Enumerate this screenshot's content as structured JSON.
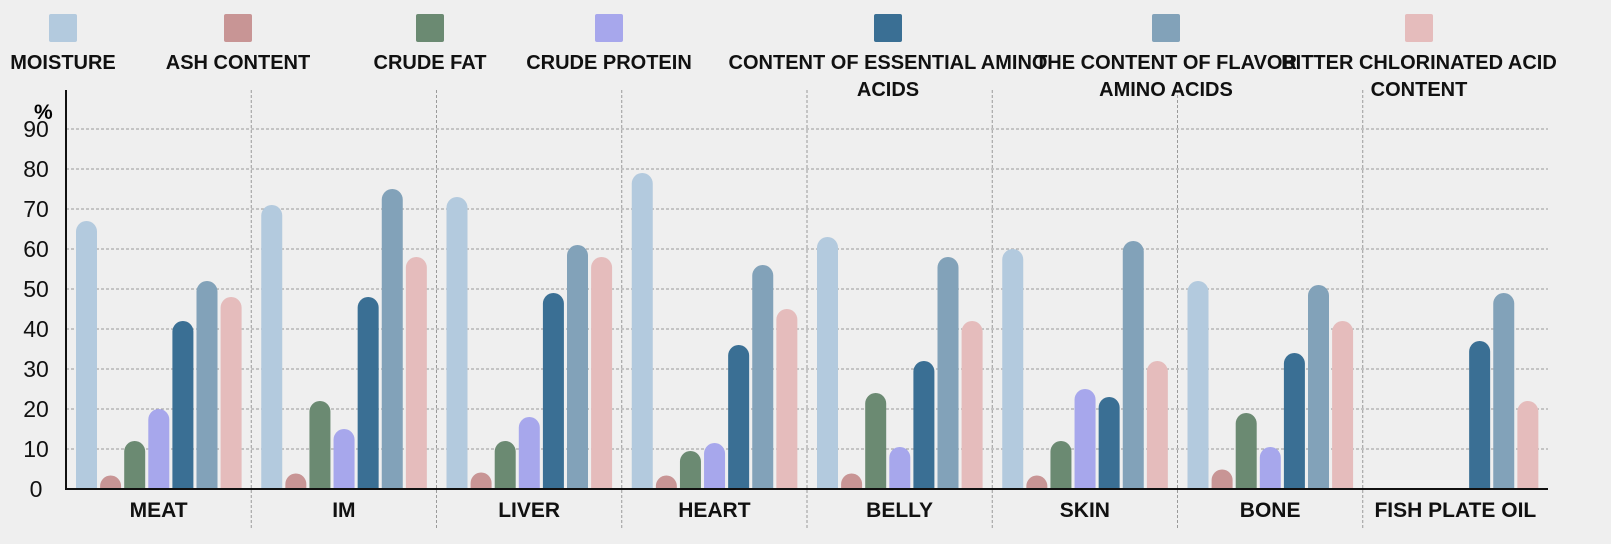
{
  "chart_data": {
    "type": "bar",
    "ylabel": "%",
    "ylim": [
      0,
      100
    ],
    "yticks": [
      0,
      10,
      20,
      30,
      40,
      50,
      60,
      70,
      80,
      90
    ],
    "grid": true,
    "legend_position": "top",
    "categories": [
      "MEAT",
      "IM",
      "LIVER",
      "HEART",
      "BELLY",
      "SKIN",
      "BONE",
      "FISH PLATE OIL"
    ],
    "series": [
      {
        "name": "MOISTURE",
        "color": "#b3cade",
        "values": [
          67,
          71,
          73,
          79,
          63,
          60,
          52,
          null
        ]
      },
      {
        "name": "ASH CONTENT",
        "color": "#c89595",
        "values": [
          1.5,
          2.5,
          3,
          1.5,
          2.5,
          1.5,
          4.5,
          null
        ]
      },
      {
        "name": "CRUDE FAT",
        "color": "#6b8a72",
        "values": [
          12,
          22,
          12,
          9.5,
          24,
          12,
          19,
          null
        ]
      },
      {
        "name": "CRUDE PROTEIN",
        "color": "#a7a7ec",
        "values": [
          20,
          15,
          18,
          11.5,
          10.5,
          25,
          10.5,
          null
        ]
      },
      {
        "name": "CONTENT OF ESSENTIAL AMINO ACIDS",
        "color": "#3a6f94",
        "values": [
          42,
          48,
          49,
          36,
          32,
          23,
          34,
          37
        ]
      },
      {
        "name": "THE CONTENT OF FLAVOR AMINO ACIDS",
        "color": "#82a2b9",
        "values": [
          52,
          75,
          61,
          56,
          58,
          62,
          51,
          49
        ]
      },
      {
        "name": "BITTER CHLORINATED ACID CONTENT",
        "color": "#e5bcbc",
        "values": [
          48,
          58,
          58,
          45,
          42,
          32,
          42,
          22
        ]
      }
    ]
  }
}
